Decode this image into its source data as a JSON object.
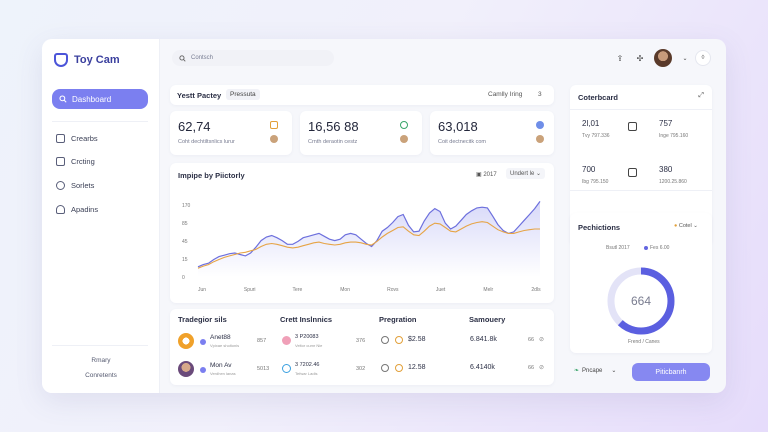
{
  "brand": {
    "name": "Toy Cam"
  },
  "sidebar": {
    "active": "Dashboard",
    "items": [
      {
        "label": "Crearbs"
      },
      {
        "label": "Crcting"
      },
      {
        "label": "Sorlets"
      },
      {
        "label": "Apadins"
      }
    ],
    "footer": [
      "Rmary",
      "Conretents"
    ]
  },
  "search": {
    "placeholder": "Contsch"
  },
  "header": {
    "title": "Yestt Pactey",
    "subtitle": "Pressuta",
    "right_label": "Camlly Iring",
    "right_count": "3"
  },
  "kpis": [
    {
      "value": "62,74",
      "label": "Coht dechtiltsnlics lurur"
    },
    {
      "value": "16,56 88",
      "label": "Crnth deraotin cestz"
    },
    {
      "value": "63,018",
      "label": "Coit dectnecitk com"
    }
  ],
  "chart": {
    "title": "Impipe by Piictorly",
    "year_filter": "2017",
    "dropdown": "Undert le",
    "chart_data": {
      "type": "line",
      "x_tick_labels": [
        "Jun",
        "Spuri",
        "Tere",
        "Mon",
        "Rovs",
        "Juet",
        "Melr",
        "2dls"
      ],
      "y_tick_labels": [
        "170",
        "85",
        "45",
        "15",
        "0"
      ],
      "series": [
        {
          "color": "#6d70dd",
          "values": [
            14,
            17,
            19,
            24,
            28,
            30,
            32,
            33,
            31,
            29,
            33,
            41,
            50,
            55,
            57,
            54,
            50,
            45,
            45,
            49,
            54,
            56,
            58,
            60,
            56,
            52,
            50,
            52,
            58,
            60,
            58,
            52,
            46,
            42,
            50,
            63,
            68,
            75,
            83,
            86,
            71,
            62,
            63,
            77,
            88,
            94,
            90,
            74,
            66,
            70,
            78,
            86,
            91,
            95,
            96,
            95,
            84,
            72,
            64,
            60,
            62,
            70,
            78,
            86,
            94,
            104
          ]
        },
        {
          "color": "#e6a446",
          "values": [
            12,
            15,
            17,
            21,
            24,
            27,
            29,
            31,
            33,
            34,
            36,
            38,
            42,
            45,
            46,
            45,
            43,
            41,
            40,
            41,
            43,
            45,
            47,
            48,
            46,
            45,
            44,
            45,
            47,
            48,
            48,
            47,
            45,
            44,
            49,
            55,
            60,
            64,
            68,
            69,
            63,
            58,
            57,
            63,
            70,
            74,
            73,
            68,
            63,
            62,
            66,
            70,
            73,
            75,
            76,
            75,
            70,
            65,
            62,
            60,
            60,
            62,
            64,
            65,
            66,
            66
          ]
        }
      ]
    }
  },
  "table": {
    "headers": [
      "Tradegior sils",
      "Crett Inslnnics",
      "Pregration",
      "Samouery"
    ],
    "rows": [
      {
        "name": "Anet88",
        "sub": "Vpixae sholtonis",
        "code": "857",
        "mid_name": "3 P20083",
        "mid_sub": "Veltor cumr Nie",
        "mid_code": "376",
        "amount": "$2.58",
        "sum": "6.841.8k",
        "num": "66"
      },
      {
        "name": "Mon Av",
        "sub": "Verdhen lanas",
        "code": "5013",
        "mid_name": "3 7202.46",
        "mid_sub": "Tefwar Ladis",
        "mid_code": "302",
        "amount": "12.58",
        "sum": "6.4140k",
        "num": "66"
      }
    ]
  },
  "rightpanel": {
    "title": "Coterbcard",
    "stats": [
      {
        "value": "2l,01",
        "label": "Tvy 797.336"
      },
      {
        "value": "757",
        "label": "Inge 795.160"
      },
      {
        "value": "700",
        "label": "Ibg 795.150"
      },
      {
        "value": "380",
        "label": "1200.25.860"
      }
    ]
  },
  "donut": {
    "title": "Pechictions",
    "dropdown": "Cotel",
    "legend": [
      "Bsutl 2017",
      "Fes 6.00"
    ],
    "center": "664",
    "value_fraction": 0.62,
    "foot": "Frend / Canes"
  },
  "bottom": {
    "select": "Pncape",
    "button": "Piticbanrh"
  }
}
